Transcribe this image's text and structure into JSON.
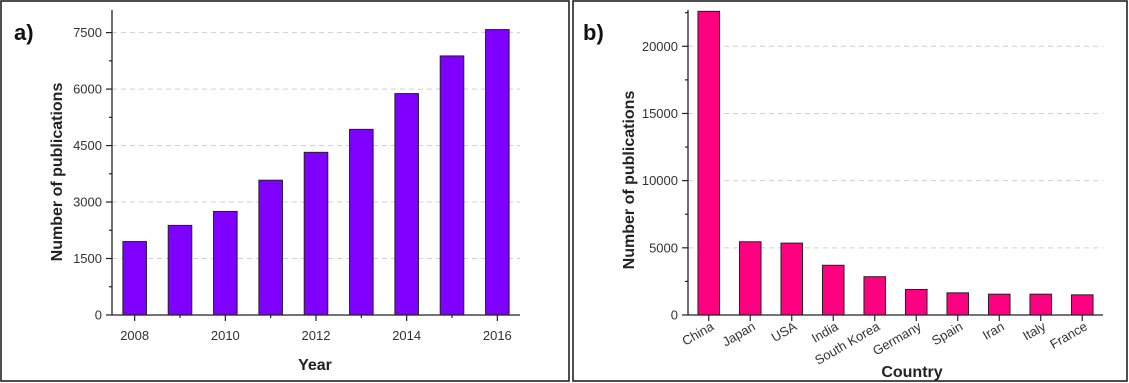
{
  "colors": {
    "panel_a_bar": "#8000ff",
    "panel_b_bar": "#ff0080",
    "grid": "#d0d0d0"
  },
  "chart_data": [
    {
      "type": "bar",
      "panel_label": "a)",
      "xlabel": "Year",
      "ylabel": "Number of publications",
      "ylim": [
        0,
        8100
      ],
      "yticks": [
        0,
        1500,
        3000,
        4500,
        6000,
        7500
      ],
      "yticklabels": [
        "0",
        "1500",
        "3000",
        "4500",
        "6000",
        "7500"
      ],
      "categories": [
        "2008",
        "2009",
        "2010",
        "2011",
        "2012",
        "2013",
        "2014",
        "2015",
        "2016"
      ],
      "xticklabels": [
        "2008",
        "",
        "2010",
        "",
        "2012",
        "",
        "2014",
        "",
        "2016"
      ],
      "values": [
        1950,
        2380,
        2750,
        3580,
        4320,
        4930,
        5880,
        6880,
        7580
      ],
      "grid": "horizontal dashed"
    },
    {
      "type": "bar",
      "panel_label": "b)",
      "xlabel": "Country",
      "ylabel": "Number of publications",
      "ylim": [
        0,
        22700
      ],
      "yticks": [
        0,
        5000,
        10000,
        15000,
        20000
      ],
      "yticklabels": [
        "0",
        "5000",
        "10000",
        "15000",
        "20000"
      ],
      "categories": [
        "China",
        "Japan",
        "USA",
        "India",
        "South Korea",
        "Germany",
        "Spain",
        "Iran",
        "Italy",
        "France"
      ],
      "values": [
        22600,
        5450,
        5350,
        3700,
        2850,
        1900,
        1650,
        1550,
        1550,
        1500
      ],
      "grid": "horizontal dashed"
    }
  ]
}
